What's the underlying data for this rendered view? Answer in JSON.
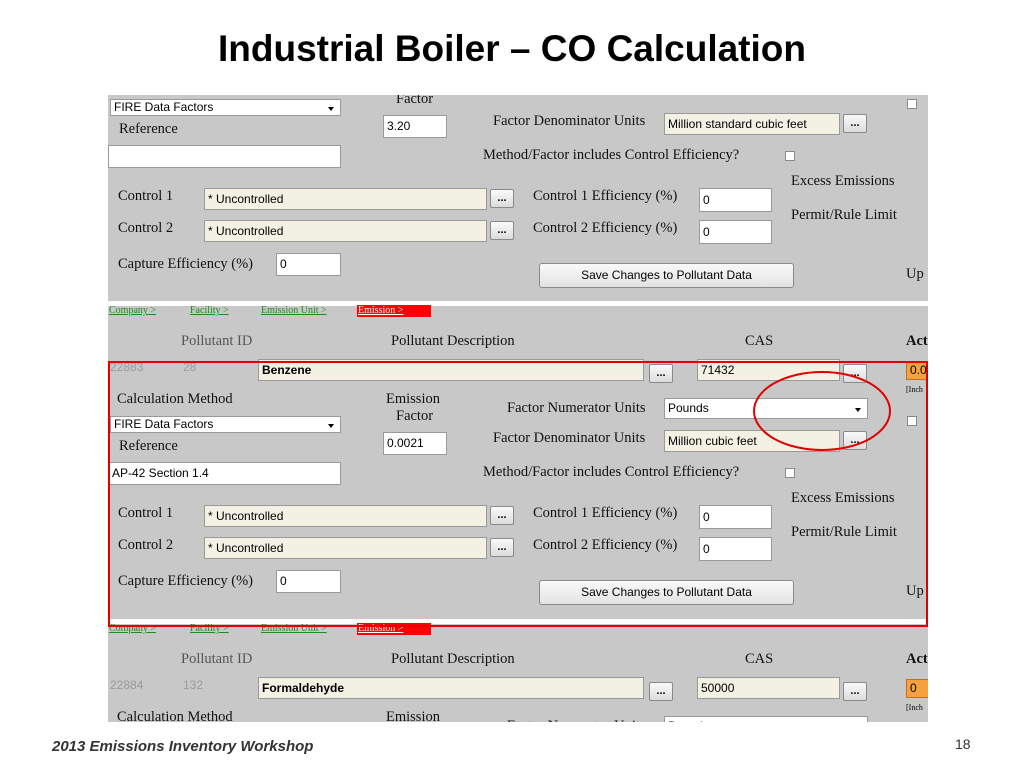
{
  "title": "Industrial Boiler – CO Calculation",
  "footer": {
    "left": "2013 Emissions Inventory Workshop",
    "page": "18"
  },
  "ui": {
    "browse_button": "..."
  },
  "blocks": [
    {
      "form": {
        "calc_method": "FIRE Data Factors",
        "factor_label": "Factor",
        "reference_label": "Reference",
        "emission_factor": "3.20",
        "denominator_label": "Factor Denominator Units",
        "denominator_units": "Million standard cubic feet",
        "control_efficiency_label": "Method/Factor includes Control Efficiency?",
        "excess_label": "Excess Emissions",
        "control1_label": "Control 1",
        "control1": "* Uncontrolled",
        "control1_eff_label": "Control 1 Efficiency (%)",
        "control1_eff": "0",
        "permit_label": "Permit/Rule Limit",
        "control2_label": "Control 2",
        "control2": "* Uncontrolled",
        "control2_eff_label": "Control 2 Efficiency (%)",
        "control2_eff": "0",
        "capture_label": "Capture Efficiency (%)",
        "capture": "0",
        "save_button": "Save Changes to Pollutant Data",
        "up_label": "Up"
      }
    },
    {
      "breadcrumb": [
        "Company >",
        "Facility >",
        "Emission Unit >",
        "Emission >"
      ],
      "headers": {
        "pollutant_id": "Pollutant ID",
        "description": "Pollutant Description",
        "cas": "CAS",
        "actual": "Act"
      },
      "record": {
        "id": "22883",
        "code": "28",
        "description": "Benzene",
        "cas": "71432",
        "actual": "0.0",
        "actual_units": "[Inch"
      },
      "form": {
        "calc_method_label": "Calculation Method",
        "emission_label": "Emission",
        "factor_label": "Factor",
        "numerator_label": "Factor Numerator Units",
        "numerator_units": "Pounds",
        "calc_method": "FIRE Data Factors",
        "reference_label": "Reference",
        "emission_factor": "0.0021",
        "denominator_label": "Factor Denominator Units",
        "denominator_units": "Million cubic feet",
        "reference": "AP-42 Section 1.4",
        "control_efficiency_label": "Method/Factor includes Control Efficiency?",
        "excess_label": "Excess Emissions",
        "control1_label": "Control 1",
        "control1": "* Uncontrolled",
        "control1_eff_label": "Control 1 Efficiency (%)",
        "control1_eff": "0",
        "permit_label": "Permit/Rule Limit",
        "control2_label": "Control 2",
        "control2": "* Uncontrolled",
        "control2_eff_label": "Control 2 Efficiency (%)",
        "control2_eff": "0",
        "capture_label": "Capture Efficiency (%)",
        "capture": "0",
        "save_button": "Save Changes to Pollutant Data",
        "up_label": "Up"
      }
    },
    {
      "breadcrumb": [
        "Company >",
        "Facility >",
        "Emission Unit >",
        "Emission >"
      ],
      "headers": {
        "pollutant_id": "Pollutant ID",
        "description": "Pollutant Description",
        "cas": "CAS",
        "actual": "Act"
      },
      "record": {
        "id": "22884",
        "code": "132",
        "description": "Formaldehyde",
        "cas": "50000",
        "actual": "0",
        "actual_units": "[Inch"
      },
      "form": {
        "calc_method_label": "Calculation Method",
        "emission_label": "Emission",
        "numerator_label": "Factor Numerator Units",
        "numerator_units": "Pounds"
      }
    }
  ]
}
